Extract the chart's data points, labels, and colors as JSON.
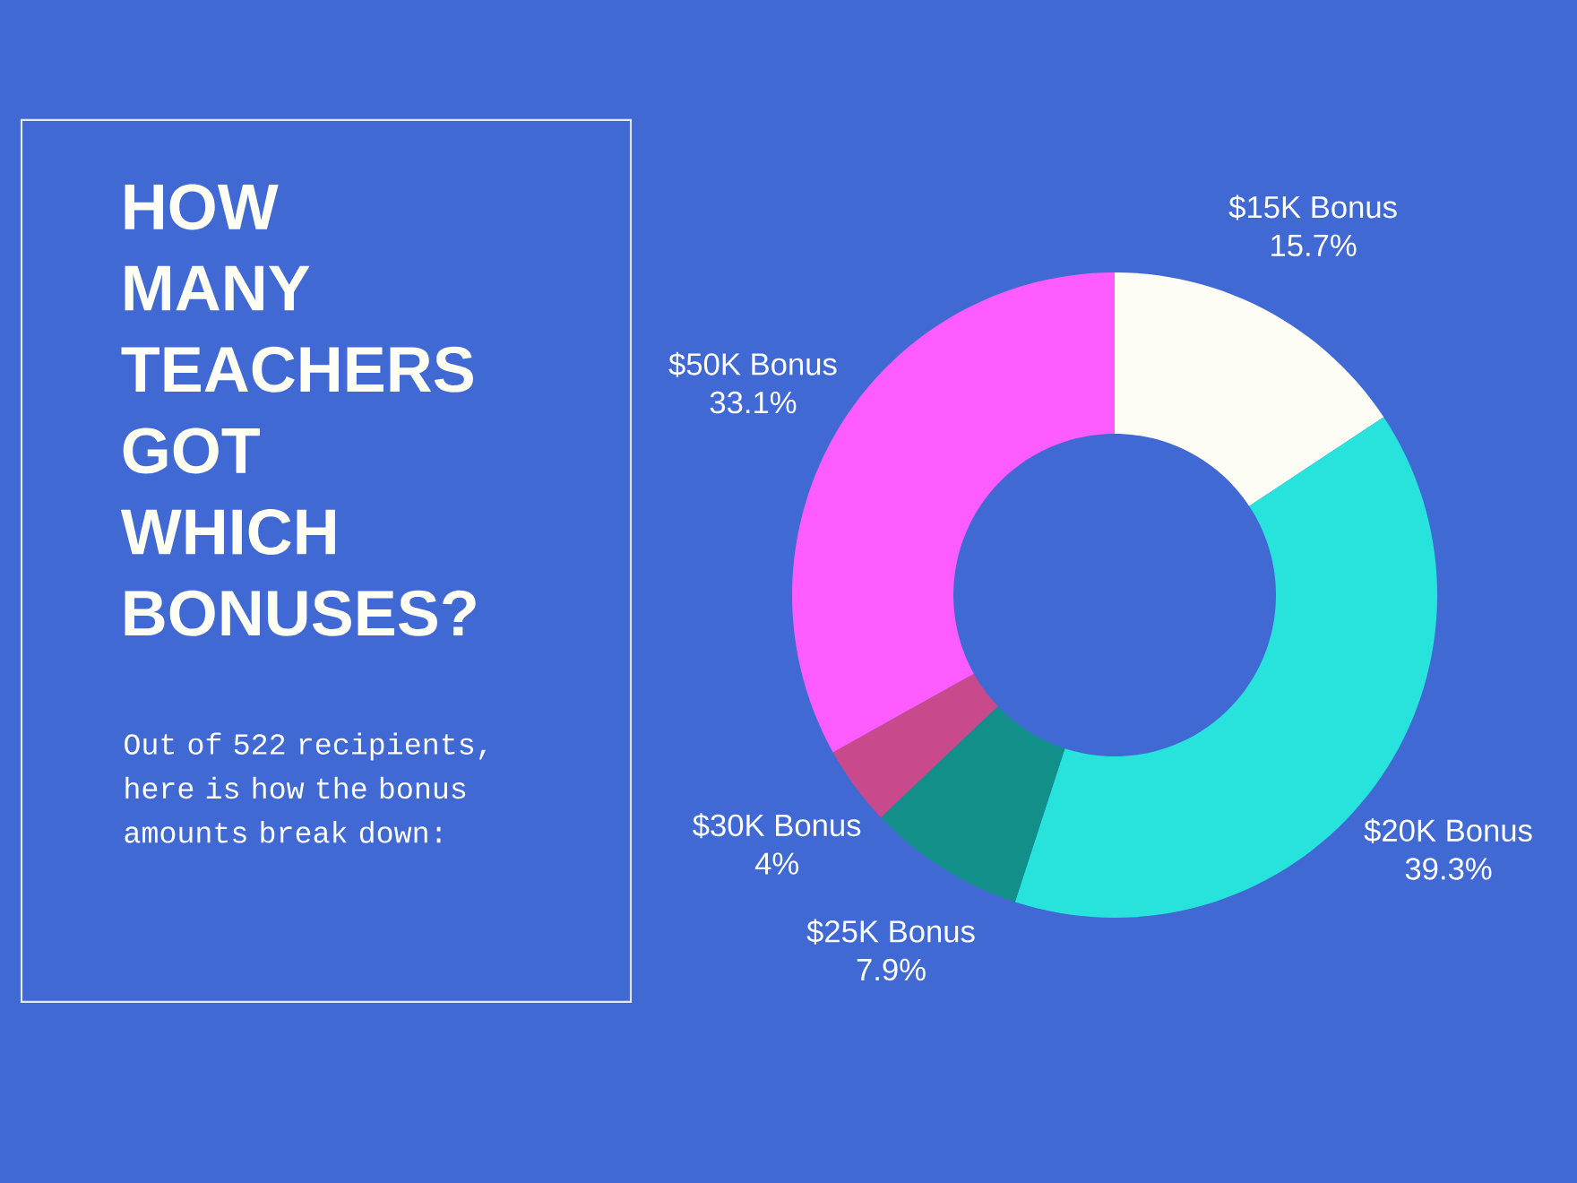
{
  "chart_data": {
    "type": "donut",
    "title": "HOW MANY TEACHERS GOT WHICH BONUSES?",
    "subtitle": "Out of 522 recipients, here is how the bonus amounts break down:",
    "categories": [
      "$15K Bonus",
      "$20K Bonus",
      "$25K Bonus",
      "$30K Bonus",
      "$50K Bonus"
    ],
    "values": [
      15.7,
      39.3,
      7.9,
      4,
      33.1
    ],
    "value_labels": [
      "15.7%",
      "39.3%",
      "7.9%",
      "4%",
      "33.1%"
    ],
    "colors": [
      "#fdfdf5",
      "#27e3dc",
      "#138f8a",
      "#c84a8c",
      "#fe5cff"
    ]
  }
}
